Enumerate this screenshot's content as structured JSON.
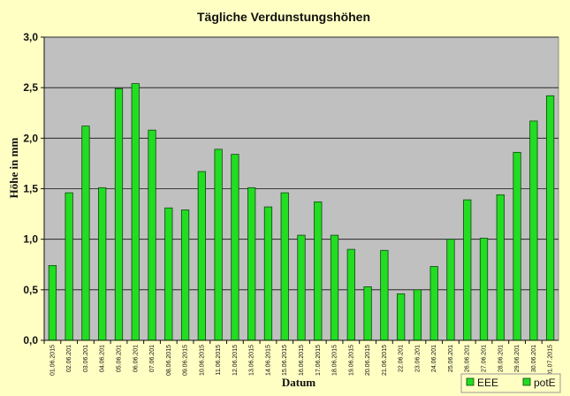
{
  "chart_data": {
    "type": "bar",
    "title": "Tägliche Verdunstungshöhen",
    "xlabel": "Datum",
    "ylabel": "Höhe in mm",
    "ylim": [
      0,
      3.0
    ],
    "yticks": [
      "0,0",
      "0,5",
      "1,0",
      "1,5",
      "2,0",
      "2,5",
      "3,0"
    ],
    "grid": true,
    "legend_position": "bottom-right",
    "colors": {
      "bar": "#22dd22",
      "bar_stroke": "#114411",
      "plot_bg": "#c0c0c0",
      "page_bg": "#ffffc4"
    },
    "categories": [
      "01.06.2015",
      "02.06.201",
      "03.06.201",
      "04.06.201",
      "05.06.201",
      "06.06.201",
      "07.06.201",
      "08.06.2015",
      "09.06.2015",
      "10.06.2015",
      "11.06.2015",
      "12.06.2015",
      "13.06.2015",
      "14.06.2015",
      "15.06.2015",
      "16.06.2015",
      "17.06.2015",
      "18.06.2015",
      "19.06.2015",
      "20.06.2015",
      "21.06.2015",
      "22.06.201",
      "23.06.201",
      "24.06.201",
      "25.06.201",
      "26.06.201",
      "27.06.201",
      "28.06.201",
      "29.06.201",
      "30.06.201",
      "01.07.2015"
    ],
    "series": [
      {
        "name": "EEE",
        "values": [
          0,
          0,
          0,
          0,
          0,
          0,
          0,
          0,
          0,
          0,
          0,
          0,
          0,
          0,
          0,
          0,
          0,
          0,
          0,
          0,
          0,
          0,
          0,
          0,
          0,
          0,
          0,
          0,
          0,
          0,
          0
        ]
      },
      {
        "name": "potE",
        "values": [
          0.74,
          1.46,
          2.12,
          1.51,
          2.49,
          2.54,
          2.08,
          1.31,
          1.29,
          1.67,
          1.89,
          1.84,
          1.51,
          1.32,
          1.46,
          1.04,
          1.37,
          1.04,
          0.9,
          0.53,
          0.89,
          0.46,
          0.5,
          0.73,
          1.0,
          1.39,
          1.01,
          1.44,
          1.86,
          2.17,
          2.42
        ]
      }
    ]
  }
}
